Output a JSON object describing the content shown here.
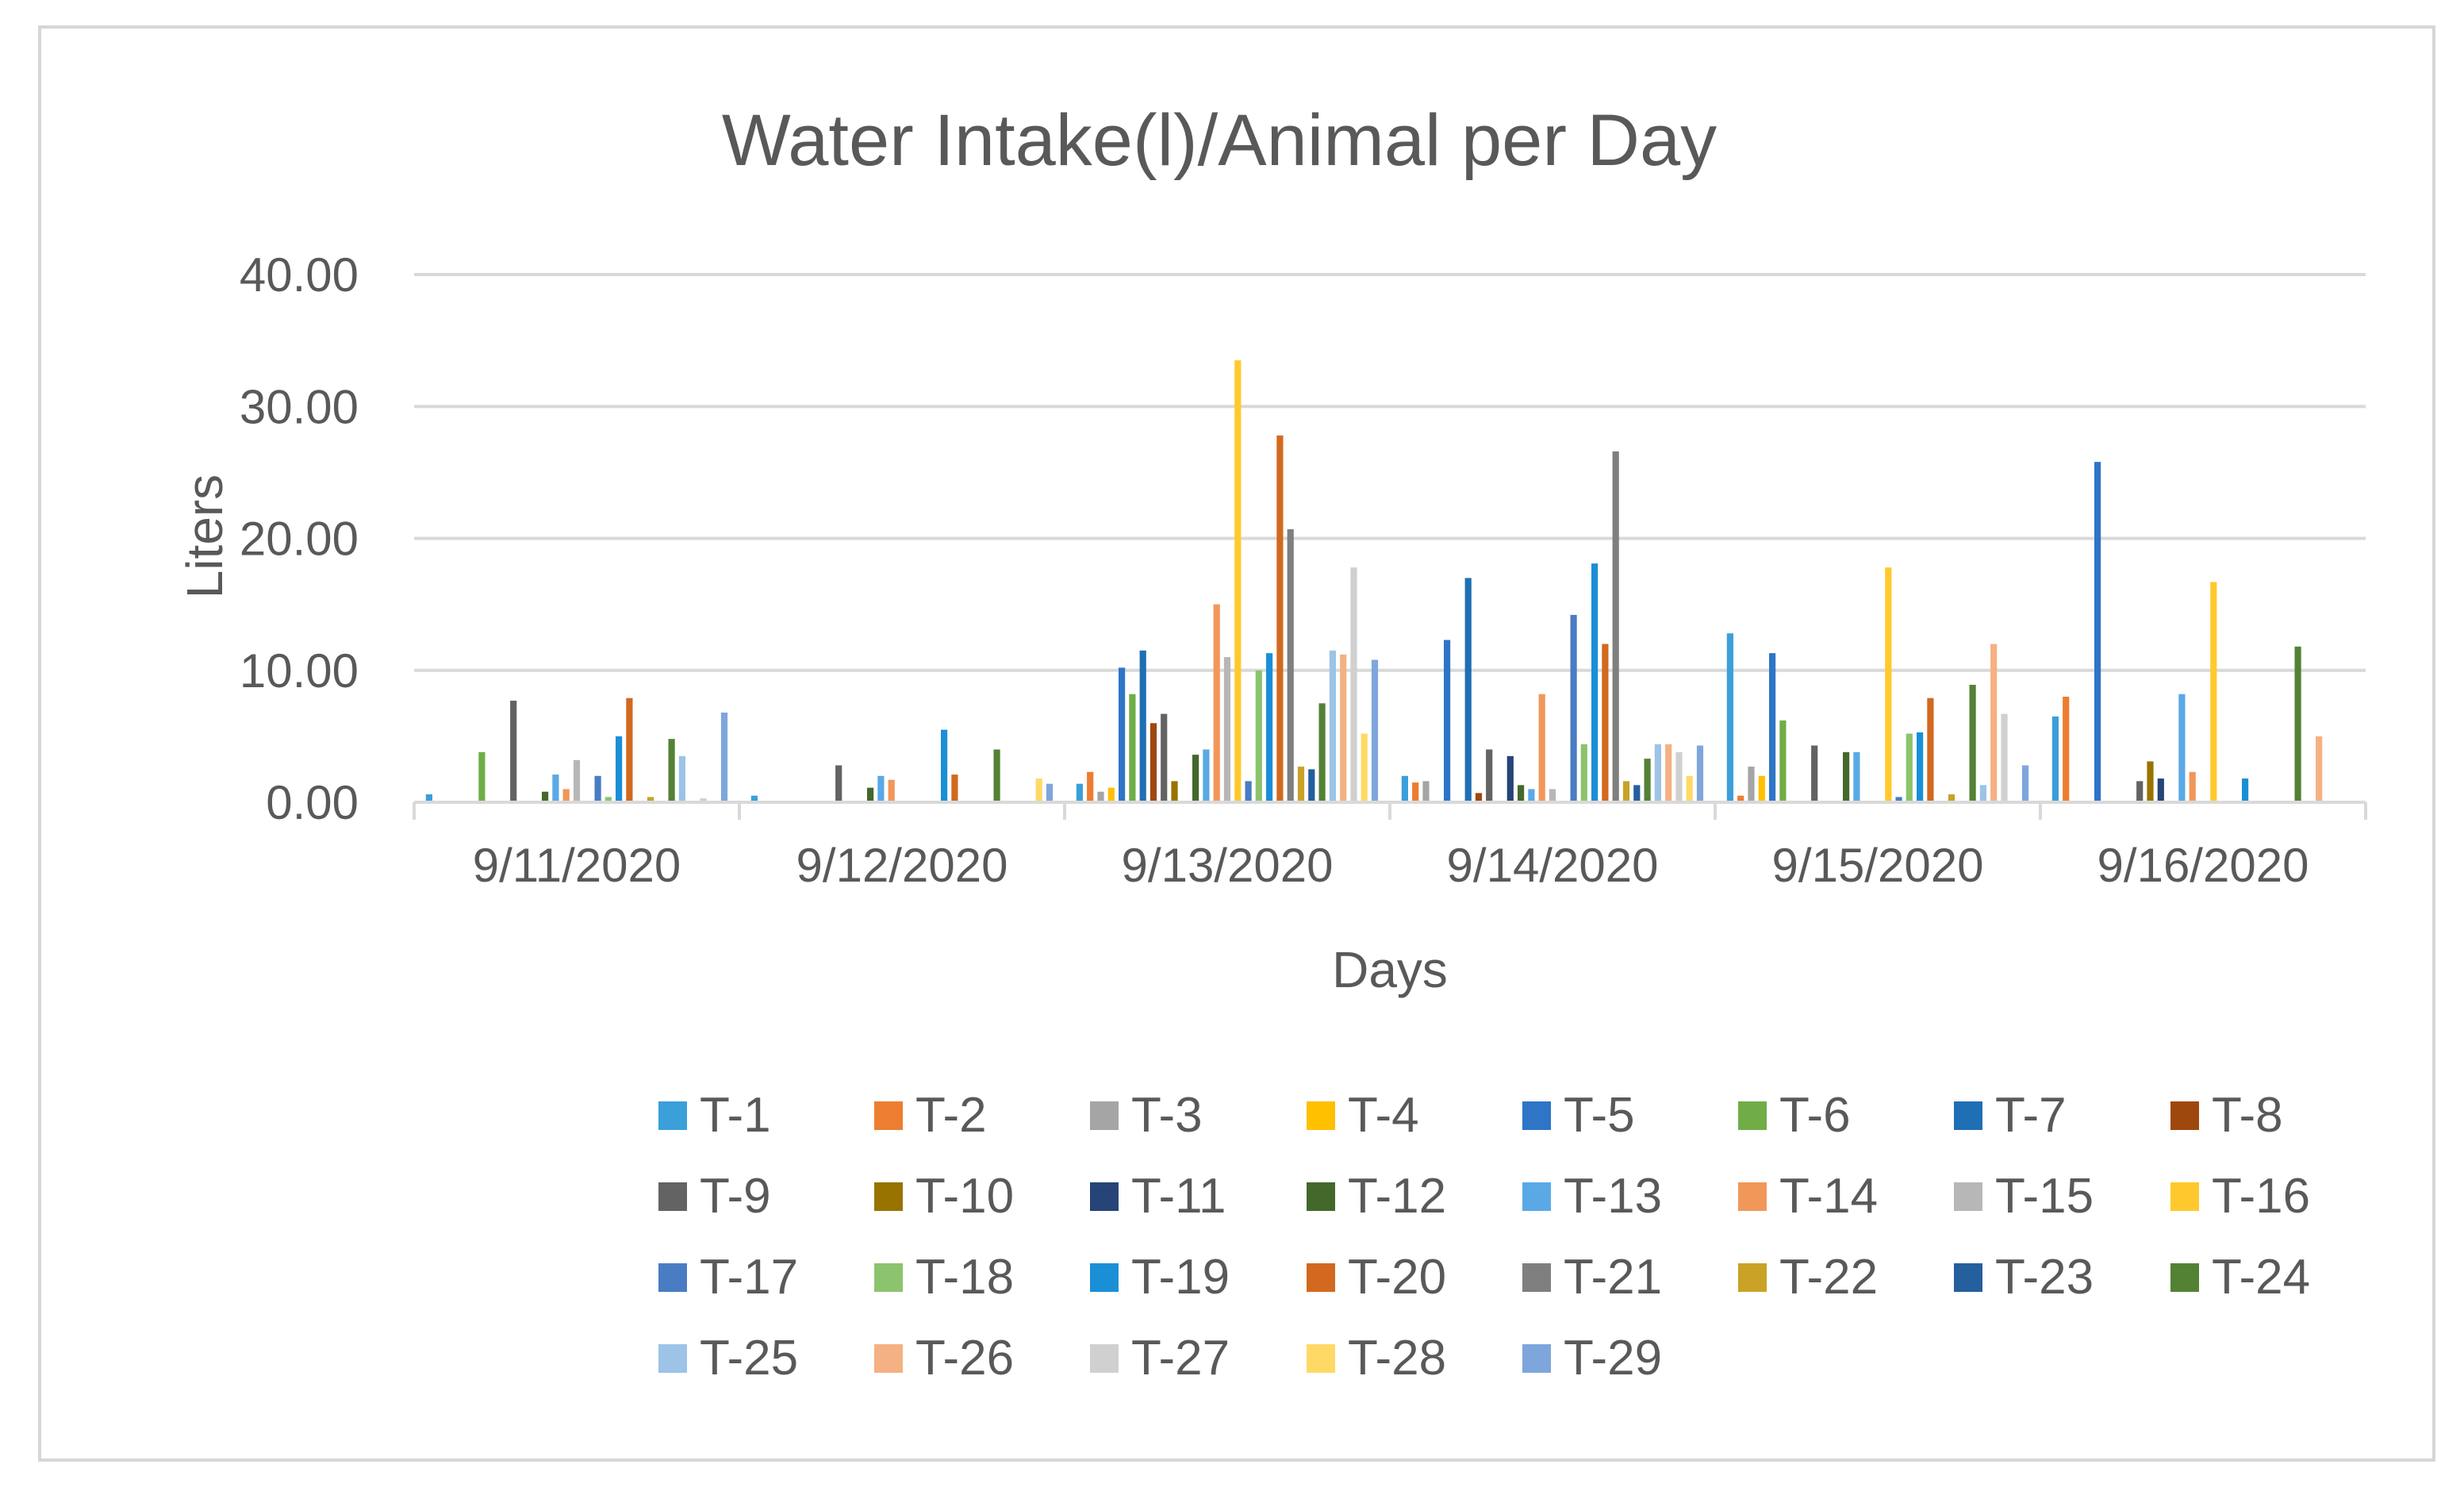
{
  "chart_data": {
    "type": "bar",
    "title": "Water Intake(l)/Animal per Day",
    "xlabel": "Days",
    "ylabel": "Liters",
    "ylim": [
      0,
      40
    ],
    "yticks": [
      0,
      10,
      20,
      30,
      40
    ],
    "ytick_labels": [
      "0.00",
      "10.00",
      "20.00",
      "30.00",
      "40.00"
    ],
    "grid": true,
    "legend_position": "bottom",
    "categories": [
      "9/11/2020",
      "9/12/2020",
      "9/13/2020",
      "9/14/2020",
      "9/15/2020",
      "9/16/2020"
    ],
    "series": [
      {
        "name": "T-1",
        "color": "#3b9fd9",
        "values": [
          0.6,
          0.5,
          1.4,
          2.0,
          12.8,
          6.5
        ]
      },
      {
        "name": "T-2",
        "color": "#ed7d31",
        "values": [
          0,
          0,
          2.3,
          1.5,
          0.5,
          8.0
        ]
      },
      {
        "name": "T-3",
        "color": "#a5a5a5",
        "values": [
          0,
          0,
          0.8,
          1.6,
          2.7,
          0
        ]
      },
      {
        "name": "T-4",
        "color": "#ffc000",
        "values": [
          0,
          0,
          1.1,
          0,
          2.0,
          0
        ]
      },
      {
        "name": "T-5",
        "color": "#2e75c8",
        "values": [
          0,
          0,
          10.2,
          12.3,
          11.3,
          25.8
        ]
      },
      {
        "name": "T-6",
        "color": "#70ad47",
        "values": [
          3.8,
          0,
          8.2,
          0,
          6.2,
          0
        ]
      },
      {
        "name": "T-7",
        "color": "#1f6fb4",
        "values": [
          0,
          0,
          11.5,
          17.0,
          0,
          0
        ]
      },
      {
        "name": "T-8",
        "color": "#9e480e",
        "values": [
          0,
          0,
          6.0,
          0.7,
          0,
          0
        ]
      },
      {
        "name": "T-9",
        "color": "#636363",
        "values": [
          7.7,
          2.8,
          6.7,
          4.0,
          4.3,
          1.6
        ]
      },
      {
        "name": "T-10",
        "color": "#997300",
        "values": [
          0,
          0,
          1.6,
          0,
          0,
          3.1
        ]
      },
      {
        "name": "T-11",
        "color": "#264478",
        "values": [
          0,
          0,
          0,
          3.5,
          0,
          1.8
        ]
      },
      {
        "name": "T-12",
        "color": "#43682b",
        "values": [
          0.8,
          1.1,
          3.6,
          1.3,
          3.8,
          0
        ]
      },
      {
        "name": "T-13",
        "color": "#5aa9e6",
        "values": [
          2.1,
          2.0,
          4.0,
          1.0,
          3.8,
          8.2
        ]
      },
      {
        "name": "T-14",
        "color": "#f1975a",
        "values": [
          1.0,
          1.7,
          15.0,
          8.2,
          0,
          2.3
        ]
      },
      {
        "name": "T-15",
        "color": "#b7b7b7",
        "values": [
          3.2,
          0,
          11.0,
          1.0,
          0,
          0
        ]
      },
      {
        "name": "T-16",
        "color": "#ffc92e",
        "values": [
          0,
          0,
          33.5,
          0,
          17.8,
          16.7
        ]
      },
      {
        "name": "T-17",
        "color": "#4a7cc4",
        "values": [
          2.0,
          0,
          1.6,
          14.2,
          0.4,
          0
        ]
      },
      {
        "name": "T-18",
        "color": "#8cc36e",
        "values": [
          0.4,
          0,
          10.0,
          4.4,
          5.2,
          0
        ]
      },
      {
        "name": "T-19",
        "color": "#1b8fd6",
        "values": [
          5.0,
          5.5,
          11.3,
          18.1,
          5.3,
          1.8
        ]
      },
      {
        "name": "T-20",
        "color": "#d2691e",
        "values": [
          7.9,
          2.1,
          27.8,
          12.0,
          7.9,
          0
        ]
      },
      {
        "name": "T-21",
        "color": "#7f7f7f",
        "values": [
          0,
          0,
          20.7,
          26.6,
          0,
          0
        ]
      },
      {
        "name": "T-22",
        "color": "#c9a227",
        "values": [
          0.4,
          0,
          2.7,
          1.6,
          0.6,
          0
        ]
      },
      {
        "name": "T-23",
        "color": "#245f9e",
        "values": [
          0,
          0,
          2.5,
          1.3,
          0,
          0
        ]
      },
      {
        "name": "T-24",
        "color": "#548235",
        "values": [
          4.8,
          4.0,
          7.5,
          3.3,
          8.9,
          11.8
        ]
      },
      {
        "name": "T-25",
        "color": "#9dc3e6",
        "values": [
          3.5,
          0,
          11.5,
          4.4,
          1.3,
          0
        ]
      },
      {
        "name": "T-26",
        "color": "#f4b183",
        "values": [
          0,
          0,
          11.2,
          4.4,
          12.0,
          5.0
        ]
      },
      {
        "name": "T-27",
        "color": "#d0d0d0",
        "values": [
          0.3,
          0,
          17.8,
          3.8,
          6.7,
          0
        ]
      },
      {
        "name": "T-28",
        "color": "#ffd966",
        "values": [
          0,
          1.8,
          5.2,
          2.0,
          0,
          0
        ]
      },
      {
        "name": "T-29",
        "color": "#7fa6dc",
        "values": [
          6.8,
          1.4,
          10.8,
          4.3,
          2.8,
          0
        ]
      }
    ]
  }
}
